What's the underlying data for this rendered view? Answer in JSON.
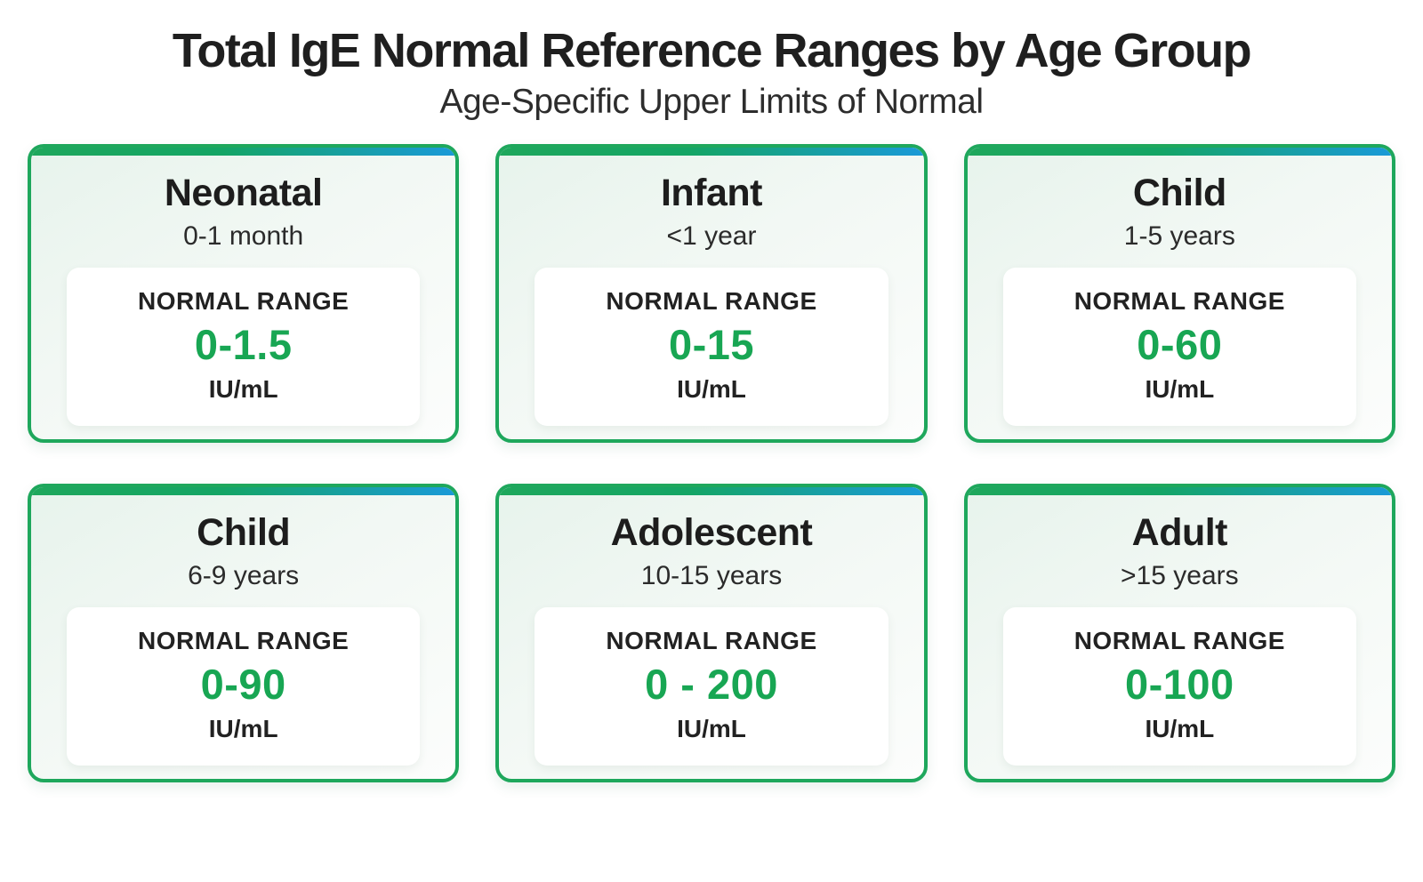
{
  "header": {
    "title": "Total IgE Normal Reference Ranges by Age Group",
    "subtitle": "Age-Specific Upper Limits of Normal"
  },
  "colors": {
    "accent_green": "#1ea75c",
    "accent_blue": "#1a9ad8",
    "value_green": "#18a653",
    "text_dark": "#212121"
  },
  "cards": [
    {
      "group": "Neonatal",
      "age_range": "0-1 month",
      "range_label": "NORMAL RANGE",
      "range_value": "0-1.5",
      "unit": "IU/mL"
    },
    {
      "group": "Infant",
      "age_range": "<1 year",
      "range_label": "NORMAL RANGE",
      "range_value": "0-15",
      "unit": "IU/mL"
    },
    {
      "group": "Child",
      "age_range": "1-5 years",
      "range_label": "NORMAL RANGE",
      "range_value": "0-60",
      "unit": "IU/mL"
    },
    {
      "group": "Child",
      "age_range": "6-9 years",
      "range_label": "NORMAL RANGE",
      "range_value": "0-90",
      "unit": "IU/mL"
    },
    {
      "group": "Adolescent",
      "age_range": "10-15 years",
      "range_label": "NORMAL RANGE",
      "range_value": "0 - 200",
      "unit": "IU/mL"
    },
    {
      "group": "Adult",
      "age_range": ">15 years",
      "range_label": "NORMAL RANGE",
      "range_value": "0-100",
      "unit": "IU/mL"
    }
  ]
}
